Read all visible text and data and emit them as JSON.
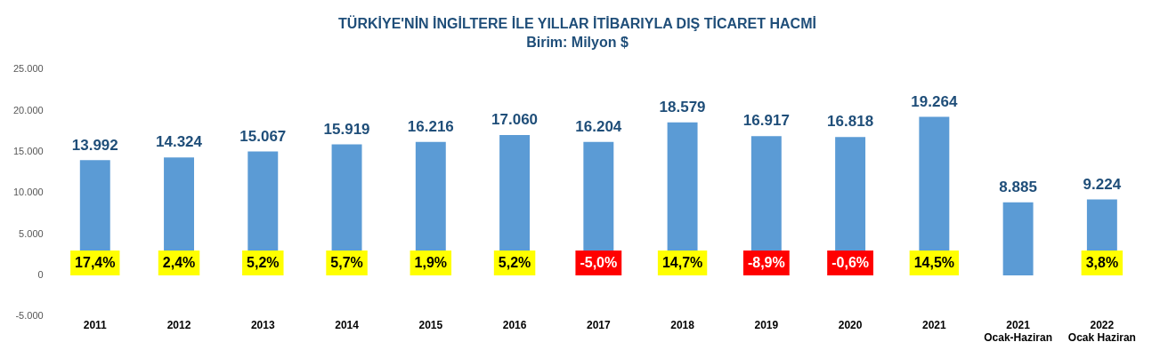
{
  "chart_data": {
    "type": "bar",
    "title": "TÜRKİYE'NİN İNGİLTERE İLE YILLAR İTİBARIYLA DIŞ TİCARET HACMİ",
    "subtitle": "Birim: Milyon $",
    "categories": [
      "2011",
      "2012",
      "2013",
      "2014",
      "2015",
      "2016",
      "2017",
      "2018",
      "2019",
      "2020",
      "2021",
      "2021\nOcak-Haziran",
      "2022\nOcak Haziran"
    ],
    "values": [
      13992,
      14324,
      15067,
      15919,
      16216,
      17060,
      16204,
      18579,
      16917,
      16818,
      19264,
      8885,
      9224
    ],
    "value_labels": [
      "13.992",
      "14.324",
      "15.067",
      "15.919",
      "16.216",
      "17.060",
      "16.204",
      "18.579",
      "16.917",
      "16.818",
      "19.264",
      "8.885",
      "9.224"
    ],
    "color": "#5b9bd5",
    "ylim": [
      -5000,
      25000
    ],
    "yticks": [
      {
        "value": -5000,
        "label": "-5.000"
      },
      0,
      {
        "value": 5000,
        "label": "5.000"
      },
      {
        "value": 10000,
        "label": "10.000"
      },
      {
        "value": 15000,
        "label": "15.000"
      },
      {
        "value": 20000,
        "label": "20.000"
      },
      {
        "value": 25000,
        "label": "25.000"
      }
    ],
    "grid": false,
    "legend": false,
    "annotations": [
      "17,4%",
      "2,4%",
      "5,2%",
      "5,7%",
      "1,9%",
      "5,2%",
      "-5,0%",
      "14,7%",
      "-8,9%",
      "-0,6%",
      "14,5%",
      null,
      "3,8%"
    ]
  }
}
